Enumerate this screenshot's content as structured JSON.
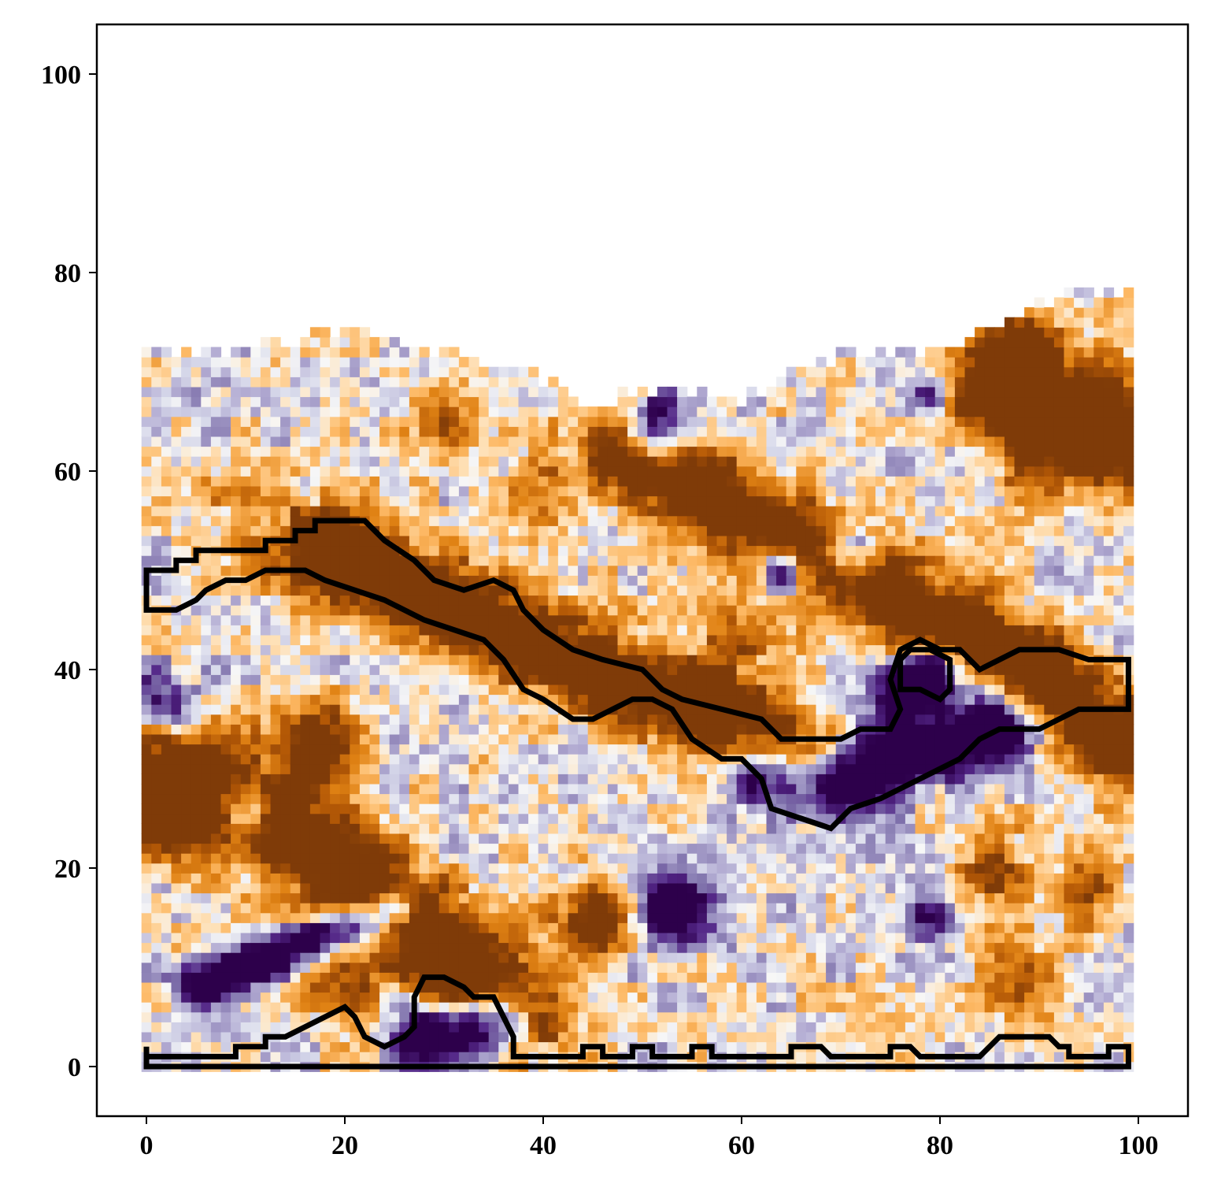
{
  "chart_data": {
    "type": "heatmap",
    "title": "",
    "xlabel": "",
    "ylabel": "",
    "xlim": [
      -5,
      105
    ],
    "ylim": [
      -5,
      105
    ],
    "x_ticks": [
      0,
      20,
      40,
      60,
      80,
      100
    ],
    "y_ticks": [
      0,
      20,
      40,
      60,
      80,
      100
    ],
    "x_tick_labels": [
      "0",
      "20",
      "40",
      "60",
      "80",
      "100"
    ],
    "y_tick_labels": [
      "0",
      "20",
      "40",
      "60",
      "80",
      "100"
    ],
    "grid": false,
    "colormap": "PuOr",
    "colors": {
      "orange_strong": "#7f3b08",
      "orange_mid": "#e08214",
      "orange_light": "#fdd49e",
      "neutral": "#f7f7f7",
      "purple_light": "#d8daeb",
      "purple_mid": "#8073ac",
      "purple_strong": "#2d004b"
    },
    "grid_extent": {
      "x": [
        0,
        99
      ],
      "y": [
        0,
        78
      ]
    },
    "contour_color": "#000000",
    "features": [
      {
        "kind": "orange_band",
        "path": [
          [
            0,
            32
          ],
          [
            10,
            26
          ],
          [
            20,
            20
          ],
          [
            30,
            12
          ],
          [
            38,
            6
          ]
        ],
        "width": 3.5,
        "value": 1.0
      },
      {
        "kind": "orange_band",
        "path": [
          [
            18,
            52
          ],
          [
            30,
            47
          ],
          [
            40,
            42
          ],
          [
            50,
            38
          ],
          [
            58,
            35
          ],
          [
            65,
            32
          ]
        ],
        "width": 3,
        "value": 1.0
      },
      {
        "kind": "orange_band",
        "path": [
          [
            48,
            62
          ],
          [
            58,
            57
          ],
          [
            68,
            52
          ],
          [
            78,
            46
          ],
          [
            90,
            40
          ],
          [
            99,
            32
          ]
        ],
        "width": 3,
        "value": 1.0
      },
      {
        "kind": "orange_band",
        "path": [
          [
            85,
            68
          ],
          [
            90,
            63
          ],
          [
            99,
            62
          ]
        ],
        "width": 3,
        "value": 1.0
      },
      {
        "kind": "purple_band",
        "path": [
          [
            5,
            8
          ],
          [
            15,
            12
          ],
          [
            25,
            16
          ]
        ],
        "width": 1.5,
        "value": -1.0
      },
      {
        "kind": "purple_band",
        "path": [
          [
            62,
            30
          ],
          [
            70,
            29
          ],
          [
            78,
            32
          ],
          [
            86,
            34
          ]
        ],
        "width": 2.5,
        "value": -1.0
      },
      {
        "kind": "purple_band",
        "path": [
          [
            28,
            3
          ],
          [
            36,
            5
          ]
        ],
        "width": 2.5,
        "value": -1.0
      },
      {
        "kind": "purple_band",
        "path": [
          [
            76,
            38
          ],
          [
            80,
            40
          ]
        ],
        "width": 2,
        "value": -0.9
      },
      {
        "kind": "purple_blob",
        "x": 51,
        "y": 64,
        "r": 2.5,
        "value": -1.0
      },
      {
        "kind": "purple_blob",
        "x": 53,
        "y": 16,
        "r": 2.5,
        "value": -1.0
      },
      {
        "kind": "purple_blob",
        "x": 1,
        "y": 36,
        "r": 2.5,
        "value": -1.0
      },
      {
        "kind": "purple_blob",
        "x": 71,
        "y": 52,
        "r": 2,
        "value": -0.9
      },
      {
        "kind": "purple_blob",
        "x": 64,
        "y": 50,
        "r": 1.5,
        "value": -0.9
      },
      {
        "kind": "purple_blob",
        "x": 79,
        "y": 68,
        "r": 1.5,
        "value": -0.7
      },
      {
        "kind": "purple_blob",
        "x": 10,
        "y": 26,
        "r": 2,
        "value": -0.8
      },
      {
        "kind": "purple_blob",
        "x": 79,
        "y": 15,
        "r": 2,
        "value": -0.7
      },
      {
        "kind": "orange_blob",
        "x": 2,
        "y": 25,
        "r": 3,
        "value": 0.9
      },
      {
        "kind": "orange_blob",
        "x": 17,
        "y": 33,
        "r": 3,
        "value": 0.9
      },
      {
        "kind": "orange_blob",
        "x": 45,
        "y": 15,
        "r": 2.5,
        "value": 0.9
      },
      {
        "kind": "orange_blob",
        "x": 30,
        "y": 9,
        "r": 2,
        "value": 0.8
      },
      {
        "kind": "orange_blob",
        "x": 88,
        "y": 72,
        "r": 3,
        "value": 0.8
      },
      {
        "kind": "orange_blob",
        "x": 95,
        "y": 68,
        "r": 3,
        "value": 0.8
      },
      {
        "kind": "orange_blob",
        "x": 30,
        "y": 65,
        "r": 2.5,
        "value": 0.6
      },
      {
        "kind": "orange_blob",
        "x": 95,
        "y": 18,
        "r": 2.5,
        "value": 0.6
      },
      {
        "kind": "orange_blob",
        "x": 88,
        "y": 8,
        "r": 3,
        "value": 0.55
      },
      {
        "kind": "orange_blob",
        "x": 40,
        "y": 58,
        "r": 3,
        "value": 0.5
      },
      {
        "kind": "orange_blob",
        "x": 20,
        "y": 8,
        "r": 3,
        "value": 0.5
      },
      {
        "kind": "orange_blob",
        "x": 85,
        "y": 20,
        "r": 3,
        "value": 0.5
      },
      {
        "kind": "orange_blob",
        "x": 60,
        "y": 44,
        "r": 4,
        "value": 0.35
      },
      {
        "kind": "orange_blob",
        "x": 10,
        "y": 55,
        "r": 4,
        "value": 0.3
      }
    ],
    "contours": [
      {
        "name": "",
        "points": [
          [
            0,
            50
          ],
          [
            3,
            50
          ],
          [
            3,
            51
          ],
          [
            5,
            51
          ],
          [
            5,
            52
          ],
          [
            12,
            52
          ],
          [
            12,
            53
          ],
          [
            15,
            53
          ],
          [
            15,
            54
          ],
          [
            17,
            54
          ],
          [
            17,
            55
          ],
          [
            22,
            55
          ],
          [
            24,
            53
          ],
          [
            27,
            51
          ],
          [
            29,
            49
          ],
          [
            32,
            48
          ],
          [
            35,
            49
          ],
          [
            37,
            48
          ],
          [
            38,
            46
          ],
          [
            40,
            44
          ],
          [
            43,
            42
          ],
          [
            46,
            41
          ],
          [
            50,
            40
          ],
          [
            52,
            38
          ],
          [
            54,
            37
          ],
          [
            58,
            36
          ],
          [
            62,
            35
          ],
          [
            64,
            33
          ],
          [
            70,
            33
          ],
          [
            72,
            34
          ],
          [
            75,
            34
          ],
          [
            76,
            36
          ],
          [
            75,
            39
          ],
          [
            76,
            42
          ],
          [
            78,
            43
          ],
          [
            80,
            42
          ],
          [
            82,
            42
          ],
          [
            84,
            40
          ],
          [
            88,
            42
          ],
          [
            92,
            42
          ],
          [
            95,
            41
          ],
          [
            99,
            41
          ],
          [
            99,
            36
          ],
          [
            94,
            36
          ],
          [
            92,
            35
          ],
          [
            90,
            34
          ],
          [
            86,
            34
          ],
          [
            84,
            33
          ],
          [
            82,
            31
          ],
          [
            80,
            30
          ],
          [
            78,
            29
          ],
          [
            74,
            27
          ],
          [
            71,
            26
          ],
          [
            69,
            24
          ],
          [
            66,
            25
          ],
          [
            63,
            26
          ],
          [
            62,
            29
          ],
          [
            60,
            31
          ],
          [
            58,
            31
          ],
          [
            55,
            33
          ],
          [
            53,
            36
          ],
          [
            51,
            37
          ],
          [
            49,
            37
          ],
          [
            47,
            36
          ],
          [
            45,
            35
          ],
          [
            43,
            35
          ],
          [
            40,
            37
          ],
          [
            38,
            38
          ],
          [
            36,
            41
          ],
          [
            34,
            43
          ],
          [
            31,
            44
          ],
          [
            28,
            45
          ],
          [
            26,
            46
          ],
          [
            24,
            47
          ],
          [
            21,
            48
          ],
          [
            18,
            49
          ],
          [
            16,
            50
          ],
          [
            12,
            50
          ],
          [
            10,
            49
          ],
          [
            8,
            49
          ],
          [
            6,
            48
          ],
          [
            5,
            47
          ],
          [
            3,
            46
          ],
          [
            0,
            46
          ]
        ],
        "closed": true
      },
      {
        "name": "",
        "points": [
          [
            76,
            38
          ],
          [
            78,
            38
          ],
          [
            80,
            37
          ],
          [
            81,
            38
          ],
          [
            81,
            41
          ],
          [
            79,
            42
          ],
          [
            77,
            42
          ],
          [
            76,
            41
          ]
        ],
        "closed": true
      },
      {
        "name": "",
        "points": [
          [
            0,
            2
          ],
          [
            0,
            0
          ],
          [
            99,
            0
          ],
          [
            99,
            2
          ],
          [
            97,
            2
          ],
          [
            97,
            1
          ],
          [
            93,
            1
          ],
          [
            93,
            2
          ],
          [
            92,
            2
          ],
          [
            91,
            3
          ],
          [
            86,
            3
          ],
          [
            85,
            2
          ],
          [
            84,
            1
          ],
          [
            78,
            1
          ],
          [
            77,
            2
          ],
          [
            75,
            2
          ],
          [
            75,
            1
          ],
          [
            69,
            1
          ],
          [
            68,
            2
          ],
          [
            65,
            2
          ],
          [
            65,
            1
          ],
          [
            57,
            1
          ],
          [
            57,
            2
          ],
          [
            55,
            2
          ],
          [
            55,
            1
          ],
          [
            51,
            1
          ],
          [
            51,
            2
          ],
          [
            49,
            2
          ],
          [
            49,
            1
          ],
          [
            46,
            1
          ],
          [
            46,
            2
          ],
          [
            44,
            2
          ],
          [
            44,
            1
          ],
          [
            37,
            1
          ],
          [
            37,
            3
          ],
          [
            36,
            5
          ],
          [
            35,
            7
          ],
          [
            33,
            7
          ],
          [
            32,
            8
          ],
          [
            30,
            9
          ],
          [
            28,
            9
          ],
          [
            27,
            7
          ],
          [
            27,
            4
          ],
          [
            26,
            3
          ],
          [
            24,
            2
          ],
          [
            22,
            3
          ],
          [
            21,
            5
          ],
          [
            20,
            6
          ],
          [
            18,
            5
          ],
          [
            16,
            4
          ],
          [
            14,
            3
          ],
          [
            12,
            3
          ],
          [
            12,
            2
          ],
          [
            9,
            2
          ],
          [
            9,
            1
          ],
          [
            0,
            1
          ]
        ],
        "closed": true
      }
    ]
  }
}
